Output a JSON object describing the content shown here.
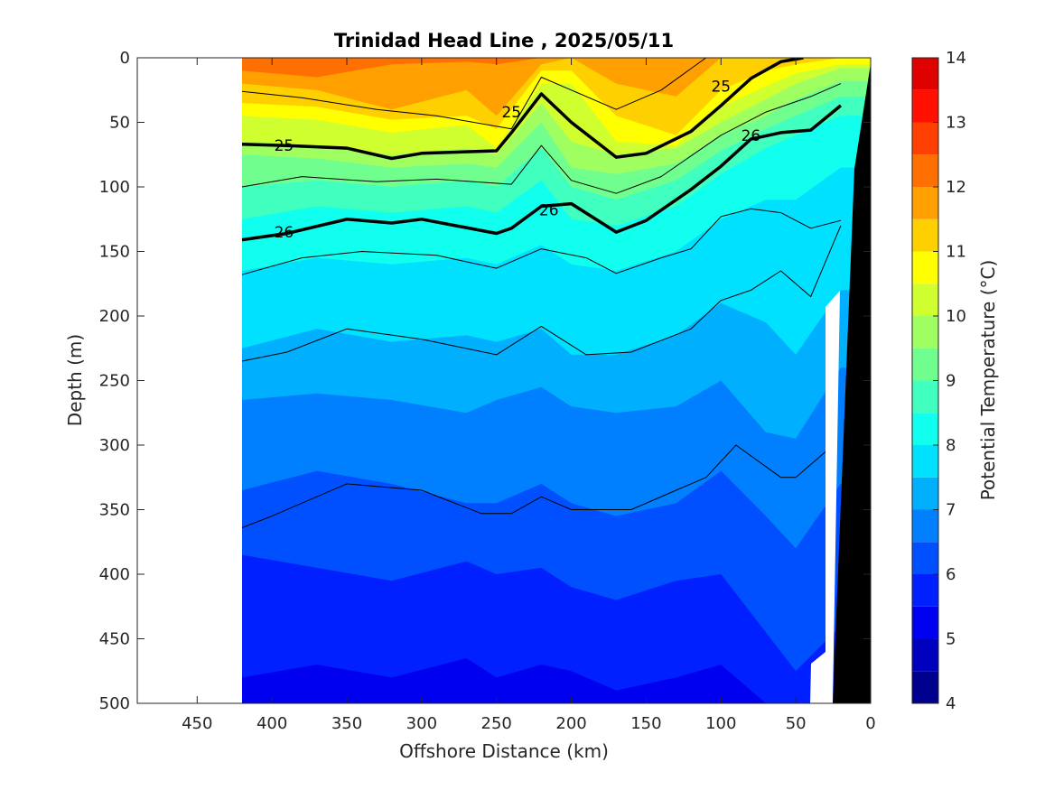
{
  "chart_data": {
    "type": "heatmap",
    "subtype": "filled-contour-section",
    "title": "Trinidad Head Line , 2025/05/11",
    "xlabel": "Offshore Distance (km)",
    "ylabel": "Depth (m)",
    "xlim": [
      490,
      0
    ],
    "ylim": [
      0,
      500
    ],
    "x_reversed": true,
    "y_reversed": true,
    "xticks": [
      "450",
      "400",
      "350",
      "300",
      "250",
      "200",
      "150",
      "100",
      "50",
      "0"
    ],
    "yticks": [
      "0",
      "50",
      "100",
      "150",
      "200",
      "250",
      "300",
      "350",
      "400",
      "450",
      "500"
    ],
    "colorbar": {
      "label": "Potential Temperature (°C)",
      "range": [
        4,
        14
      ],
      "ticks": [
        "4",
        "5",
        "6",
        "7",
        "8",
        "9",
        "10",
        "11",
        "12",
        "13",
        "14"
      ],
      "step": 0.5,
      "colors": [
        "#00008f",
        "#0000bf",
        "#0000f0",
        "#0020ff",
        "#0050ff",
        "#0080ff",
        "#00b0ff",
        "#00e0ff",
        "#10ffef",
        "#40ffbf",
        "#70ff8f",
        "#a0ff60",
        "#d0ff30",
        "#ffff00",
        "#ffd000",
        "#ffa000",
        "#ff7000",
        "#ff4000",
        "#ff1000",
        "#df0000"
      ]
    },
    "data_coverage_km": [
      20,
      420
    ],
    "land": "black wedge near 0–25 km (coast/shelf)",
    "isotherm_depths_m": {
      "x_km": [
        420,
        370,
        320,
        270,
        250,
        220,
        200,
        170,
        130,
        100,
        70,
        50,
        20
      ],
      "t_12": [
        10,
        15,
        5,
        3,
        5,
        0,
        0,
        0,
        0,
        0,
        0,
        0,
        0
      ],
      "t_11_5": [
        20,
        25,
        40,
        25,
        45,
        5,
        0,
        20,
        30,
        0,
        0,
        0,
        0
      ],
      "t_11": [
        35,
        38,
        48,
        45,
        55,
        10,
        10,
        45,
        60,
        25,
        10,
        5,
        0
      ],
      "t_10_5": [
        45,
        48,
        58,
        52,
        70,
        20,
        20,
        65,
        68,
        38,
        22,
        12,
        5
      ],
      "t_10": [
        65,
        68,
        75,
        70,
        75,
        35,
        65,
        75,
        70,
        50,
        32,
        20,
        8
      ],
      "t_9_5": [
        75,
        78,
        85,
        82,
        85,
        50,
        85,
        90,
        82,
        60,
        45,
        32,
        18
      ],
      "t_9": [
        100,
        95,
        100,
        95,
        100,
        70,
        100,
        110,
        95,
        72,
        55,
        45,
        30
      ],
      "t_8_5": [
        125,
        115,
        120,
        115,
        120,
        95,
        125,
        130,
        115,
        90,
        70,
        60,
        45
      ],
      "t_8": [
        165,
        155,
        160,
        155,
        160,
        145,
        160,
        165,
        150,
        125,
        110,
        110,
        85
      ],
      "t_7_5": [
        225,
        210,
        220,
        215,
        220,
        210,
        230,
        230,
        215,
        190,
        205,
        230,
        180
      ],
      "t_7": [
        265,
        260,
        265,
        275,
        265,
        255,
        270,
        275,
        270,
        250,
        290,
        295,
        240
      ],
      "t_6_5": [
        335,
        320,
        330,
        345,
        345,
        330,
        345,
        355,
        345,
        320,
        355,
        380,
        330
      ],
      "t_6": [
        385,
        395,
        405,
        390,
        400,
        395,
        410,
        420,
        405,
        400,
        445,
        475,
        440
      ],
      "t_5_5": [
        480,
        470,
        480,
        465,
        480,
        470,
        475,
        490,
        480,
        470,
        500,
        500,
        500
      ]
    },
    "contour_lines": [
      {
        "label": "25",
        "thick": true,
        "x_km": [
          420,
          390,
          350,
          320,
          300,
          250,
          240,
          220,
          200,
          170,
          150,
          120,
          100,
          80,
          60,
          45
        ],
        "depth_m": [
          67,
          68,
          70,
          78,
          74,
          72,
          58,
          28,
          50,
          77,
          74,
          57,
          37,
          16,
          3,
          0
        ]
      },
      {
        "label": "26",
        "thick": true,
        "x_km": [
          420,
          390,
          350,
          320,
          300,
          250,
          240,
          220,
          200,
          170,
          150,
          120,
          100,
          80,
          60,
          40,
          20
        ],
        "depth_m": [
          141,
          136,
          125,
          128,
          125,
          136,
          132,
          115,
          113,
          135,
          126,
          102,
          84,
          63,
          58,
          56,
          37
        ]
      },
      {
        "label": "",
        "thick": false,
        "x_km": [
          420,
          380,
          330,
          290,
          240,
          220,
          200,
          170,
          140,
          110,
          80,
          60,
          40,
          30
        ],
        "depth_m": [
          26,
          31,
          40,
          45,
          55,
          15,
          25,
          40,
          25,
          0,
          0,
          0,
          0,
          0
        ]
      },
      {
        "label": "",
        "thick": false,
        "x_km": [
          420,
          380,
          330,
          290,
          240,
          220,
          200,
          170,
          140,
          100,
          70,
          40,
          20
        ],
        "depth_m": [
          100,
          92,
          96,
          94,
          98,
          68,
          95,
          105,
          92,
          60,
          42,
          30,
          20
        ]
      },
      {
        "label": "",
        "thick": false,
        "x_km": [
          420,
          380,
          340,
          290,
          250,
          220,
          190,
          170,
          140,
          120,
          100,
          80,
          60,
          40,
          20
        ],
        "depth_m": [
          168,
          155,
          150,
          153,
          163,
          148,
          155,
          167,
          155,
          148,
          123,
          117,
          120,
          132,
          126
        ]
      },
      {
        "label": "",
        "thick": false,
        "x_km": [
          420,
          390,
          350,
          300,
          250,
          220,
          190,
          160,
          120,
          100,
          80,
          60,
          40,
          20
        ],
        "depth_m": [
          235,
          228,
          210,
          218,
          230,
          208,
          230,
          228,
          210,
          188,
          180,
          165,
          185,
          130
        ]
      },
      {
        "label": "",
        "thick": false,
        "x_km": [
          420,
          400,
          350,
          300,
          260,
          240,
          220,
          200,
          160,
          130,
          110,
          90,
          60,
          50,
          30
        ],
        "depth_m": [
          364,
          355,
          330,
          335,
          353,
          353,
          340,
          350,
          350,
          335,
          325,
          300,
          325,
          325,
          305
        ]
      }
    ]
  }
}
